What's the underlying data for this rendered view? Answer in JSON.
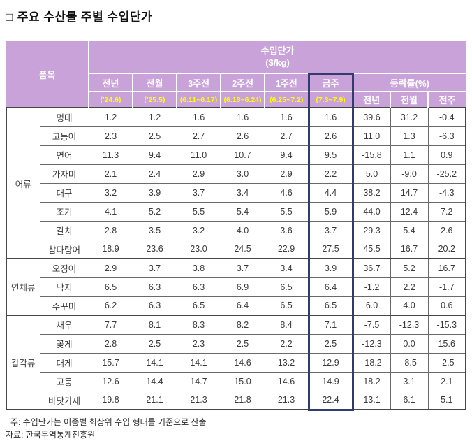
{
  "title": {
    "bullet": "□",
    "text": "주요 수산물 주별 수입단가"
  },
  "colors": {
    "header_bg": "#C8A2D8",
    "header_text": "#FFFFFF",
    "subheader_text": "#FFFF00",
    "highlight_border": "#333A6E",
    "grid_line": "#6A6A6A",
    "outer_line": "#464646"
  },
  "table": {
    "item_header": "품목",
    "price_header": "수입단가",
    "price_unit": "($/kg)",
    "rate_header": "등락률(%)",
    "price_cols": [
      {
        "label": "전년",
        "sub": "('24.6)"
      },
      {
        "label": "전월",
        "sub": "('25.5)"
      },
      {
        "label": "3주전",
        "sub": "(6.11~6.17)"
      },
      {
        "label": "2주전",
        "sub": "(6.18~6.24)"
      },
      {
        "label": "1주전",
        "sub": "(6.25~7.2)"
      },
      {
        "label": "금주",
        "sub": "(7.3~7.9)"
      }
    ],
    "rate_cols": [
      "전년",
      "전월",
      "전주"
    ],
    "groups": [
      {
        "category": "어류",
        "rows": [
          {
            "name": "명태",
            "values": [
              "1.2",
              "1.2",
              "1.6",
              "1.6",
              "1.6",
              "1.6",
              "39.6",
              "31.2",
              "-0.4"
            ]
          },
          {
            "name": "고등어",
            "values": [
              "2.3",
              "2.5",
              "2.7",
              "2.6",
              "2.7",
              "2.6",
              "11.0",
              "1.3",
              "-6.3"
            ]
          },
          {
            "name": "연어",
            "values": [
              "11.3",
              "9.4",
              "11.0",
              "10.7",
              "9.4",
              "9.5",
              "-15.8",
              "1.1",
              "0.9"
            ]
          },
          {
            "name": "가자미",
            "values": [
              "2.1",
              "2.4",
              "2.9",
              "3.0",
              "2.9",
              "2.2",
              "5.0",
              "-9.0",
              "-25.2"
            ]
          },
          {
            "name": "대구",
            "values": [
              "3.2",
              "3.9",
              "3.7",
              "3.4",
              "4.6",
              "4.4",
              "38.2",
              "14.7",
              "-4.3"
            ]
          },
          {
            "name": "조기",
            "values": [
              "4.1",
              "5.2",
              "5.5",
              "5.4",
              "5.5",
              "5.9",
              "44.0",
              "12.4",
              "7.2"
            ]
          },
          {
            "name": "갈치",
            "values": [
              "2.8",
              "3.5",
              "3.2",
              "4.0",
              "3.6",
              "3.7",
              "29.3",
              "5.4",
              "2.6"
            ]
          },
          {
            "name": "참다랑어",
            "values": [
              "18.9",
              "23.6",
              "23.0",
              "24.5",
              "22.9",
              "27.5",
              "45.5",
              "16.7",
              "20.2"
            ]
          }
        ]
      },
      {
        "category": "연체류",
        "rows": [
          {
            "name": "오징어",
            "values": [
              "2.9",
              "3.7",
              "3.8",
              "3.7",
              "3.4",
              "3.9",
              "36.7",
              "5.2",
              "16.7"
            ]
          },
          {
            "name": "낙지",
            "values": [
              "6.5",
              "6.3",
              "6.3",
              "6.9",
              "6.5",
              "6.4",
              "-1.2",
              "2.2",
              "-1.7"
            ]
          },
          {
            "name": "주꾸미",
            "values": [
              "6.2",
              "6.3",
              "6.5",
              "6.4",
              "6.5",
              "6.5",
              "6.0",
              "4.0",
              "0.6"
            ]
          }
        ]
      },
      {
        "category": "갑각류",
        "rows": [
          {
            "name": "새우",
            "values": [
              "7.7",
              "8.1",
              "8.3",
              "8.2",
              "8.4",
              "7.1",
              "-7.5",
              "-12.3",
              "-15.3"
            ]
          },
          {
            "name": "꽃게",
            "values": [
              "2.8",
              "2.5",
              "2.3",
              "2.5",
              "2.2",
              "2.5",
              "-12.3",
              "0.0",
              "15.6"
            ]
          },
          {
            "name": "대게",
            "values": [
              "15.7",
              "14.1",
              "14.1",
              "14.6",
              "13.2",
              "12.9",
              "-18.2",
              "-8.5",
              "-2.5"
            ]
          },
          {
            "name": "고둥",
            "values": [
              "12.6",
              "14.4",
              "14.7",
              "15.0",
              "14.6",
              "14.9",
              "18.2",
              "3.1",
              "2.1"
            ]
          },
          {
            "name": "바닷가재",
            "values": [
              "19.8",
              "21.1",
              "21.3",
              "21.8",
              "21.3",
              "22.4",
              "13.1",
              "6.1",
              "5.1"
            ]
          }
        ]
      }
    ]
  },
  "notes": {
    "note1": "주: 수입단가는 어종별 최상위 수입 형태를 기준으로 산출",
    "note2": "자료: 한국무역통계진흥원"
  }
}
